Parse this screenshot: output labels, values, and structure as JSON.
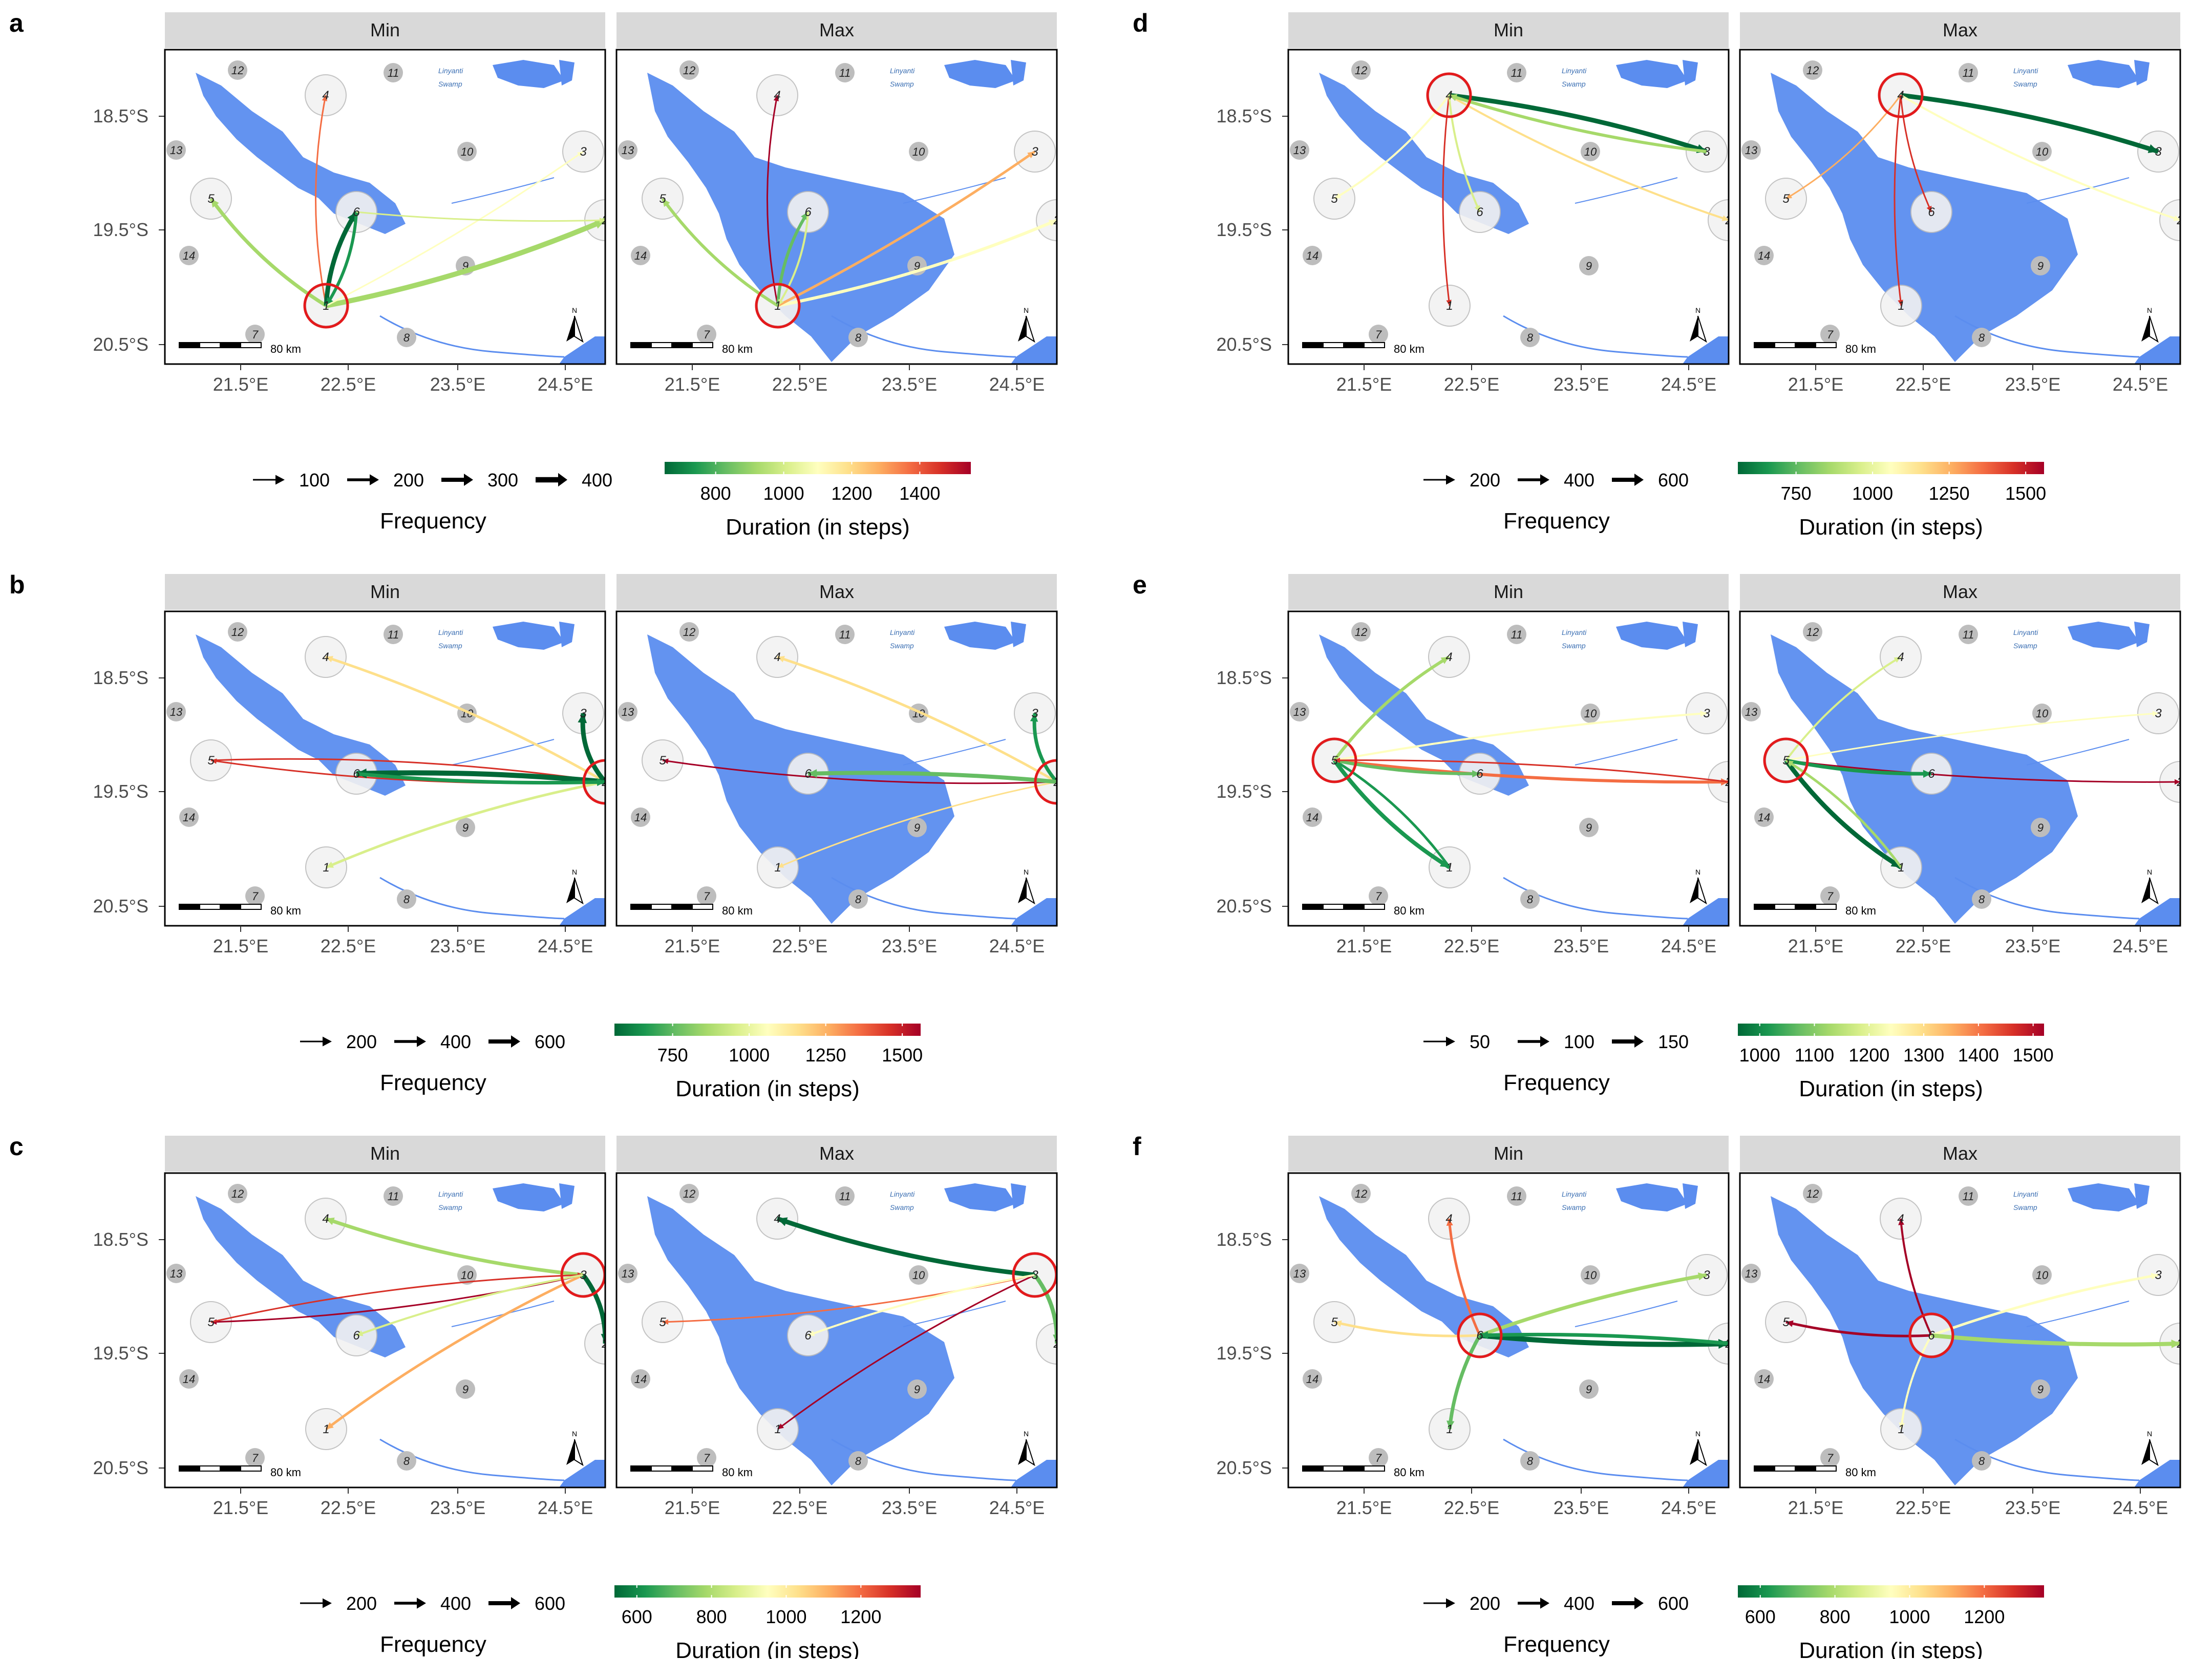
{
  "figure": {
    "panels": [
      {
        "letter": "a",
        "facets": [
          "Min",
          "Max"
        ],
        "y_ticks": [
          "18.5°S",
          "19.5°S",
          "20.5°S"
        ],
        "x_ticks": [
          "21.5°E",
          "22.5°E",
          "23.5°E",
          "24.5°E"
        ],
        "scale_bar": "80 km",
        "frequency_legend": {
          "title": "Frequency",
          "values": [
            "100",
            "200",
            "300",
            "400"
          ]
        },
        "duration_legend": {
          "title": "Duration (in steps)",
          "ticks": [
            "800",
            "1000",
            "1200",
            "1400"
          ],
          "range": [
            650,
            1550
          ]
        },
        "focal_patch": {
          "min": "1",
          "max": "1"
        }
      },
      {
        "letter": "b",
        "facets": [
          "Min",
          "Max"
        ],
        "y_ticks": [
          "18.5°S",
          "19.5°S",
          "20.5°S"
        ],
        "x_ticks": [
          "21.5°E",
          "22.5°E",
          "23.5°E",
          "24.5°E"
        ],
        "scale_bar": "80 km",
        "frequency_legend": {
          "title": "Frequency",
          "values": [
            "200",
            "400",
            "600"
          ]
        },
        "duration_legend": {
          "title": "Duration (in steps)",
          "ticks": [
            "750",
            "1000",
            "1250",
            "1500"
          ],
          "range": [
            560,
            1560
          ]
        },
        "focal_patch": {
          "min": "2",
          "max": "2"
        }
      },
      {
        "letter": "c",
        "facets": [
          "Min",
          "Max"
        ],
        "y_ticks": [
          "18.5°S",
          "19.5°S",
          "20.5°S"
        ],
        "x_ticks": [
          "21.5°E",
          "22.5°E",
          "23.5°E",
          "24.5°E"
        ],
        "scale_bar": "80 km",
        "frequency_legend": {
          "title": "Frequency",
          "values": [
            "200",
            "400",
            "600"
          ]
        },
        "duration_legend": {
          "title": "Duration (in steps)",
          "ticks": [
            "600",
            "800",
            "1000",
            "1200"
          ],
          "range": [
            540,
            1360
          ]
        },
        "focal_patch": {
          "min": "3",
          "max": "3"
        }
      },
      {
        "letter": "d",
        "facets": [
          "Min",
          "Max"
        ],
        "y_ticks": [
          "18.5°S",
          "19.5°S",
          "20.5°S"
        ],
        "x_ticks": [
          "21.5°E",
          "22.5°E",
          "23.5°E",
          "24.5°E"
        ],
        "scale_bar": "80 km",
        "frequency_legend": {
          "title": "Frequency",
          "values": [
            "200",
            "400",
            "600"
          ]
        },
        "duration_legend": {
          "title": "Duration (in steps)",
          "ticks": [
            "750",
            "1000",
            "1250",
            "1500"
          ],
          "range": [
            560,
            1560
          ]
        },
        "focal_patch": {
          "min": "4",
          "max": "4"
        }
      },
      {
        "letter": "e",
        "facets": [
          "Min",
          "Max"
        ],
        "y_ticks": [
          "18.5°S",
          "19.5°S",
          "20.5°S"
        ],
        "x_ticks": [
          "21.5°E",
          "22.5°E",
          "23.5°E",
          "24.5°E"
        ],
        "scale_bar": "80 km",
        "frequency_legend": {
          "title": "Frequency",
          "values": [
            "50",
            "100",
            "150"
          ]
        },
        "duration_legend": {
          "title": "Duration (in steps)",
          "ticks": [
            "1000",
            "1100",
            "1200",
            "1300",
            "1400",
            "1500"
          ],
          "range": [
            960,
            1520
          ]
        },
        "focal_patch": {
          "min": "5",
          "max": "5"
        }
      },
      {
        "letter": "f",
        "facets": [
          "Min",
          "Max"
        ],
        "y_ticks": [
          "18.5°S",
          "19.5°S",
          "20.5°S"
        ],
        "x_ticks": [
          "21.5°E",
          "22.5°E",
          "23.5°E",
          "24.5°E"
        ],
        "scale_bar": "80 km",
        "frequency_legend": {
          "title": "Frequency",
          "values": [
            "200",
            "400",
            "600"
          ]
        },
        "duration_legend": {
          "title": "Duration (in steps)",
          "ticks": [
            "600",
            "800",
            "1000",
            "1200"
          ],
          "range": [
            540,
            1360
          ]
        },
        "focal_patch": {
          "min": "6",
          "max": "6"
        }
      }
    ],
    "patches_numbered": [
      "1",
      "2",
      "3",
      "4",
      "5",
      "6"
    ],
    "patches_gray": [
      "7",
      "8",
      "9",
      "10",
      "11",
      "12",
      "13",
      "14"
    ],
    "place_labels": [
      "Linyanti",
      "Swamp"
    ],
    "north_label": "N",
    "colors": {
      "water": "#5b8def",
      "facet_strip": "#d9d9d9",
      "focal_circle": "#e31a1c",
      "patch_fill": "#f2f2f2",
      "gray_patch": "#bdbdbd",
      "palette": [
        "#006837",
        "#1a9850",
        "#66bd63",
        "#a6d96a",
        "#d9ef8b",
        "#ffffbf",
        "#fee08b",
        "#fdae61",
        "#f46d43",
        "#d73027",
        "#a50026"
      ]
    }
  }
}
